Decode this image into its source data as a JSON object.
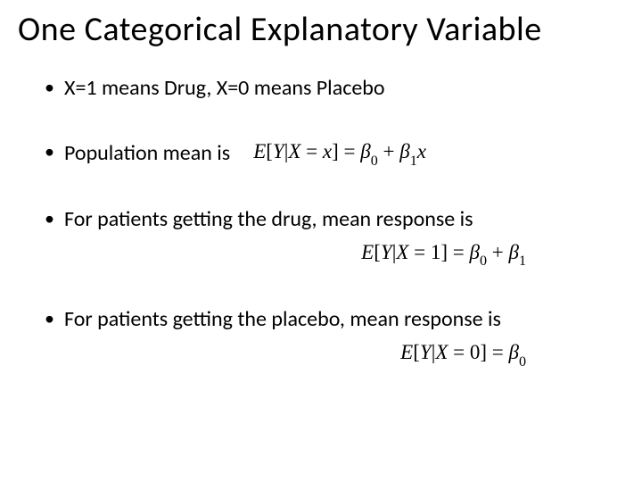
{
  "slide": {
    "title": "One Categorical Explanatory Variable",
    "title_fontsize": 38,
    "bullets": [
      {
        "text": "X=1 means Drug, X=0 means Placebo"
      },
      {
        "text": "Population mean is",
        "formula_inline": "E[Y|X = x] = β₀ + β₁x"
      },
      {
        "text": "For patients getting the drug, mean response is",
        "formula_below": "E[Y|X = 1] = β₀ + β₁"
      },
      {
        "text": "For patients getting the placebo, mean response is",
        "formula_below": "E[Y|X = 0] = β₀"
      }
    ],
    "bullet_fontsize": 24,
    "formula_fontsize": 23,
    "colors": {
      "background": "#ffffff",
      "text": "#000000"
    }
  }
}
